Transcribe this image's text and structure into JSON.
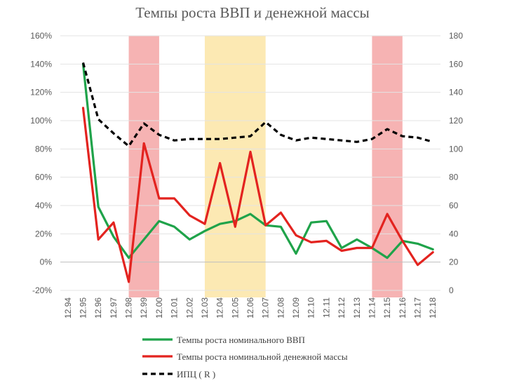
{
  "chart_data": {
    "type": "line",
    "title": "Темпы роста ВВП и денежной массы",
    "categories": [
      "12.94",
      "12.95",
      "12.96",
      "12.97",
      "12.98",
      "12.99",
      "12.00",
      "12.01",
      "12.02",
      "12.03",
      "12.04",
      "12.05",
      "12.06",
      "12.07",
      "12.08",
      "12.09",
      "12.10",
      "12.11",
      "12.12",
      "12.13",
      "12.14",
      "12.15",
      "12.16",
      "12.17",
      "12.18"
    ],
    "y_left": {
      "ylim": [
        -20,
        160
      ],
      "ticks": [
        "-20%",
        "0%",
        "20%",
        "40%",
        "60%",
        "80%",
        "100%",
        "120%",
        "140%",
        "160%"
      ]
    },
    "y_right": {
      "ylim": [
        0,
        180
      ],
      "ticks": [
        "0",
        "20",
        "40",
        "60",
        "80",
        "100",
        "120",
        "140",
        "160",
        "180"
      ]
    },
    "series": [
      {
        "name": "Темпы роста номинального ВВП",
        "axis": "left",
        "color": "#1fa34a",
        "dash": "solid",
        "values": [
          null,
          140,
          39,
          18,
          3,
          16,
          29,
          25,
          16,
          22,
          27,
          29,
          34,
          26,
          25,
          6,
          28,
          29,
          10,
          16,
          10,
          3,
          15,
          13,
          9
        ]
      },
      {
        "name": "Темпы роста номинальной денежной массы",
        "axis": "left",
        "color": "#e3231f",
        "dash": "solid",
        "values": [
          null,
          109,
          16,
          28,
          -14,
          84,
          45,
          45,
          33,
          27,
          70,
          25,
          78,
          26,
          35,
          19,
          14,
          15,
          8,
          10,
          10,
          34,
          15,
          -2,
          7
        ]
      },
      {
        "name": "ИПЦ ( R )",
        "axis": "right",
        "color": "#000000",
        "dash": "dashed",
        "values": [
          null,
          161,
          121,
          111,
          102,
          118,
          110,
          106,
          107,
          107,
          107,
          108,
          109,
          119,
          110,
          106,
          108,
          107,
          106,
          105,
          107,
          114,
          109,
          108,
          105
        ]
      }
    ],
    "shaded_regions": [
      {
        "from": "12.98",
        "to": "12.00",
        "color": "#f4a6a6"
      },
      {
        "from": "12.03",
        "to": "12.07",
        "color": "#fbe5a6"
      },
      {
        "from": "12.14",
        "to": "12.16",
        "color": "#f4a6a6"
      }
    ],
    "grid": true,
    "legend": "bottom"
  }
}
